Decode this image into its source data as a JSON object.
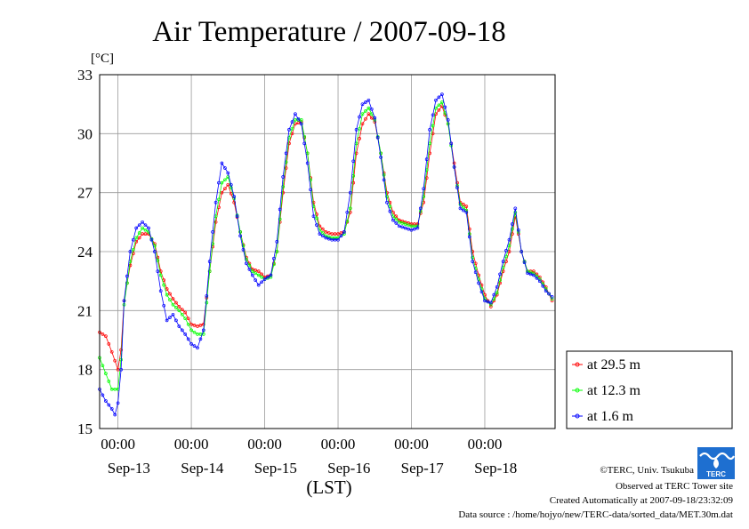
{
  "chart_data": {
    "type": "line",
    "title": "Air Temperature / 2007-09-18",
    "ylabel": "[°C]",
    "xlabel": "(LST)",
    "ylim": [
      15,
      33
    ],
    "yticks": [
      15,
      18,
      21,
      24,
      27,
      30,
      33
    ],
    "x_start": "2007-09-12T18:00",
    "x_end": "2007-09-18T23:00",
    "x_time_labels": [
      "00:00",
      "00:00",
      "00:00",
      "00:00",
      "00:00",
      "00:00"
    ],
    "x_day_labels": [
      "Sep-13",
      "Sep-14",
      "Sep-15",
      "Sep-16",
      "Sep-17",
      "Sep-18"
    ],
    "grid": true,
    "legend_position": "right",
    "series": [
      {
        "name": "at 29.5 m",
        "color": "#ff0000",
        "points": [
          [
            "2007-09-12T18:00",
            19.9
          ],
          [
            "2007-09-12T20:00",
            19.7
          ],
          [
            "2007-09-12T22:00",
            18.9
          ],
          [
            "2007-09-13T00:00",
            18.0
          ],
          [
            "2007-09-13T01:00",
            19.0
          ],
          [
            "2007-09-13T02:00",
            21.5
          ],
          [
            "2007-09-13T04:00",
            23.3
          ],
          [
            "2007-09-13T06:00",
            24.5
          ],
          [
            "2007-09-13T08:00",
            24.9
          ],
          [
            "2007-09-13T10:00",
            24.9
          ],
          [
            "2007-09-13T12:00",
            24.4
          ],
          [
            "2007-09-13T14:00",
            23.0
          ],
          [
            "2007-09-13T16:00",
            22.1
          ],
          [
            "2007-09-13T18:00",
            21.6
          ],
          [
            "2007-09-13T20:00",
            21.2
          ],
          [
            "2007-09-13T22:00",
            20.9
          ],
          [
            "2007-09-14T00:00",
            20.3
          ],
          [
            "2007-09-14T02:00",
            20.2
          ],
          [
            "2007-09-14T04:00",
            20.3
          ],
          [
            "2007-09-14T06:00",
            23.0
          ],
          [
            "2007-09-14T08:00",
            25.5
          ],
          [
            "2007-09-14T10:00",
            27.0
          ],
          [
            "2007-09-14T12:00",
            27.4
          ],
          [
            "2007-09-14T14:00",
            26.5
          ],
          [
            "2007-09-14T16:00",
            25.0
          ],
          [
            "2007-09-14T18:00",
            23.7
          ],
          [
            "2007-09-14T20:00",
            23.1
          ],
          [
            "2007-09-14T22:00",
            23.0
          ],
          [
            "2007-09-15T00:00",
            22.7
          ],
          [
            "2007-09-15T02:00",
            22.8
          ],
          [
            "2007-09-15T04:00",
            24.0
          ],
          [
            "2007-09-15T06:00",
            27.0
          ],
          [
            "2007-09-15T08:00",
            29.5
          ],
          [
            "2007-09-15T10:00",
            30.5
          ],
          [
            "2007-09-15T12:00",
            30.6
          ],
          [
            "2007-09-15T14:00",
            29.0
          ],
          [
            "2007-09-15T16:00",
            26.5
          ],
          [
            "2007-09-15T18:00",
            25.3
          ],
          [
            "2007-09-15T20:00",
            25.0
          ],
          [
            "2007-09-15T22:00",
            24.9
          ],
          [
            "2007-09-16T00:00",
            24.9
          ],
          [
            "2007-09-16T02:00",
            25.0
          ],
          [
            "2007-09-16T04:00",
            26.0
          ],
          [
            "2007-09-16T06:00",
            29.0
          ],
          [
            "2007-09-16T08:00",
            30.5
          ],
          [
            "2007-09-16T10:00",
            31.0
          ],
          [
            "2007-09-16T12:00",
            30.6
          ],
          [
            "2007-09-16T14:00",
            29.0
          ],
          [
            "2007-09-16T16:00",
            27.0
          ],
          [
            "2007-09-16T18:00",
            26.0
          ],
          [
            "2007-09-16T20:00",
            25.6
          ],
          [
            "2007-09-16T22:00",
            25.5
          ],
          [
            "2007-09-17T00:00",
            25.4
          ],
          [
            "2007-09-17T02:00",
            25.4
          ],
          [
            "2007-09-17T04:00",
            26.5
          ],
          [
            "2007-09-17T06:00",
            29.0
          ],
          [
            "2007-09-17T08:00",
            31.0
          ],
          [
            "2007-09-17T10:00",
            31.4
          ],
          [
            "2007-09-17T12:00",
            30.5
          ],
          [
            "2007-09-17T14:00",
            28.5
          ],
          [
            "2007-09-17T16:00",
            26.5
          ],
          [
            "2007-09-17T18:00",
            26.3
          ],
          [
            "2007-09-17T20:00",
            24.0
          ],
          [
            "2007-09-17T22:00",
            22.8
          ],
          [
            "2007-09-18T00:00",
            21.8
          ],
          [
            "2007-09-18T02:00",
            21.2
          ],
          [
            "2007-09-18T04:00",
            21.8
          ],
          [
            "2007-09-18T06:00",
            23.0
          ],
          [
            "2007-09-18T08:00",
            24.0
          ],
          [
            "2007-09-18T10:00",
            25.8
          ],
          [
            "2007-09-18T12:00",
            24.0
          ],
          [
            "2007-09-18T14:00",
            23.0
          ],
          [
            "2007-09-18T16:00",
            23.0
          ],
          [
            "2007-09-18T18:00",
            22.7
          ],
          [
            "2007-09-18T20:00",
            22.2
          ],
          [
            "2007-09-18T22:00",
            21.5
          ]
        ]
      },
      {
        "name": "at 12.3 m",
        "color": "#00ff00",
        "points": [
          [
            "2007-09-12T18:00",
            18.6
          ],
          [
            "2007-09-12T20:00",
            17.8
          ],
          [
            "2007-09-12T22:00",
            17.0
          ],
          [
            "2007-09-13T00:00",
            17.0
          ],
          [
            "2007-09-13T01:00",
            18.5
          ],
          [
            "2007-09-13T02:00",
            21.3
          ],
          [
            "2007-09-13T04:00",
            23.5
          ],
          [
            "2007-09-13T06:00",
            24.7
          ],
          [
            "2007-09-13T08:00",
            25.2
          ],
          [
            "2007-09-13T10:00",
            25.0
          ],
          [
            "2007-09-13T12:00",
            24.3
          ],
          [
            "2007-09-13T14:00",
            22.8
          ],
          [
            "2007-09-13T16:00",
            21.8
          ],
          [
            "2007-09-13T18:00",
            21.3
          ],
          [
            "2007-09-13T20:00",
            21.0
          ],
          [
            "2007-09-13T22:00",
            20.6
          ],
          [
            "2007-09-14T00:00",
            20.0
          ],
          [
            "2007-09-14T02:00",
            19.8
          ],
          [
            "2007-09-14T04:00",
            19.8
          ],
          [
            "2007-09-14T06:00",
            23.0
          ],
          [
            "2007-09-14T08:00",
            25.8
          ],
          [
            "2007-09-14T10:00",
            27.5
          ],
          [
            "2007-09-14T12:00",
            27.8
          ],
          [
            "2007-09-14T14:00",
            26.7
          ],
          [
            "2007-09-14T16:00",
            25.0
          ],
          [
            "2007-09-14T18:00",
            23.6
          ],
          [
            "2007-09-14T20:00",
            23.0
          ],
          [
            "2007-09-14T22:00",
            22.8
          ],
          [
            "2007-09-15T00:00",
            22.6
          ],
          [
            "2007-09-15T02:00",
            22.7
          ],
          [
            "2007-09-15T04:00",
            24.0
          ],
          [
            "2007-09-15T06:00",
            27.3
          ],
          [
            "2007-09-15T08:00",
            29.8
          ],
          [
            "2007-09-15T10:00",
            30.7
          ],
          [
            "2007-09-15T12:00",
            30.7
          ],
          [
            "2007-09-15T14:00",
            29.0
          ],
          [
            "2007-09-15T16:00",
            26.3
          ],
          [
            "2007-09-15T18:00",
            25.1
          ],
          [
            "2007-09-15T20:00",
            24.8
          ],
          [
            "2007-09-15T22:00",
            24.7
          ],
          [
            "2007-09-16T00:00",
            24.7
          ],
          [
            "2007-09-16T02:00",
            24.9
          ],
          [
            "2007-09-16T04:00",
            26.2
          ],
          [
            "2007-09-16T06:00",
            29.5
          ],
          [
            "2007-09-16T08:00",
            31.0
          ],
          [
            "2007-09-16T10:00",
            31.3
          ],
          [
            "2007-09-16T12:00",
            30.7
          ],
          [
            "2007-09-16T14:00",
            29.0
          ],
          [
            "2007-09-16T16:00",
            26.8
          ],
          [
            "2007-09-16T18:00",
            25.8
          ],
          [
            "2007-09-16T20:00",
            25.5
          ],
          [
            "2007-09-16T22:00",
            25.4
          ],
          [
            "2007-09-17T00:00",
            25.3
          ],
          [
            "2007-09-17T02:00",
            25.3
          ],
          [
            "2007-09-17T04:00",
            26.8
          ],
          [
            "2007-09-17T06:00",
            29.5
          ],
          [
            "2007-09-17T08:00",
            31.3
          ],
          [
            "2007-09-17T10:00",
            31.6
          ],
          [
            "2007-09-17T12:00",
            30.5
          ],
          [
            "2007-09-17T14:00",
            28.3
          ],
          [
            "2007-09-17T16:00",
            26.4
          ],
          [
            "2007-09-17T18:00",
            26.1
          ],
          [
            "2007-09-17T20:00",
            23.7
          ],
          [
            "2007-09-17T22:00",
            22.6
          ],
          [
            "2007-09-18T00:00",
            21.6
          ],
          [
            "2007-09-18T02:00",
            21.3
          ],
          [
            "2007-09-18T04:00",
            21.9
          ],
          [
            "2007-09-18T06:00",
            23.2
          ],
          [
            "2007-09-18T08:00",
            24.3
          ],
          [
            "2007-09-18T10:00",
            26.0
          ],
          [
            "2007-09-18T12:00",
            24.0
          ],
          [
            "2007-09-18T14:00",
            23.0
          ],
          [
            "2007-09-18T16:00",
            22.9
          ],
          [
            "2007-09-18T18:00",
            22.6
          ],
          [
            "2007-09-18T20:00",
            22.1
          ],
          [
            "2007-09-18T22:00",
            21.6
          ]
        ]
      },
      {
        "name": "at 1.6 m",
        "color": "#0000ff",
        "points": [
          [
            "2007-09-12T18:00",
            17.0
          ],
          [
            "2007-09-12T20:00",
            16.4
          ],
          [
            "2007-09-12T22:00",
            16.0
          ],
          [
            "2007-09-12T23:00",
            15.7
          ],
          [
            "2007-09-13T00:00",
            16.3
          ],
          [
            "2007-09-13T01:00",
            18.0
          ],
          [
            "2007-09-13T02:00",
            21.5
          ],
          [
            "2007-09-13T04:00",
            24.0
          ],
          [
            "2007-09-13T06:00",
            25.2
          ],
          [
            "2007-09-13T08:00",
            25.5
          ],
          [
            "2007-09-13T10:00",
            25.2
          ],
          [
            "2007-09-13T12:00",
            24.0
          ],
          [
            "2007-09-13T14:00",
            22.0
          ],
          [
            "2007-09-13T16:00",
            20.5
          ],
          [
            "2007-09-13T18:00",
            20.8
          ],
          [
            "2007-09-13T20:00",
            20.2
          ],
          [
            "2007-09-13T22:00",
            19.8
          ],
          [
            "2007-09-14T00:00",
            19.3
          ],
          [
            "2007-09-14T02:00",
            19.1
          ],
          [
            "2007-09-14T04:00",
            20.0
          ],
          [
            "2007-09-14T06:00",
            23.5
          ],
          [
            "2007-09-14T08:00",
            26.5
          ],
          [
            "2007-09-14T10:00",
            28.5
          ],
          [
            "2007-09-14T12:00",
            28.0
          ],
          [
            "2007-09-14T14:00",
            26.8
          ],
          [
            "2007-09-14T16:00",
            24.8
          ],
          [
            "2007-09-14T18:00",
            23.4
          ],
          [
            "2007-09-14T20:00",
            22.8
          ],
          [
            "2007-09-14T22:00",
            22.3
          ],
          [
            "2007-09-15T00:00",
            22.6
          ],
          [
            "2007-09-15T02:00",
            22.8
          ],
          [
            "2007-09-15T04:00",
            24.5
          ],
          [
            "2007-09-15T06:00",
            27.8
          ],
          [
            "2007-09-15T08:00",
            30.2
          ],
          [
            "2007-09-15T10:00",
            31.0
          ],
          [
            "2007-09-15T12:00",
            30.5
          ],
          [
            "2007-09-15T14:00",
            28.5
          ],
          [
            "2007-09-15T16:00",
            25.8
          ],
          [
            "2007-09-15T18:00",
            24.9
          ],
          [
            "2007-09-15T20:00",
            24.7
          ],
          [
            "2007-09-15T22:00",
            24.6
          ],
          [
            "2007-09-16T00:00",
            24.6
          ],
          [
            "2007-09-16T02:00",
            25.0
          ],
          [
            "2007-09-16T04:00",
            27.0
          ],
          [
            "2007-09-16T06:00",
            30.2
          ],
          [
            "2007-09-16T08:00",
            31.5
          ],
          [
            "2007-09-16T10:00",
            31.7
          ],
          [
            "2007-09-16T12:00",
            30.8
          ],
          [
            "2007-09-16T14:00",
            28.8
          ],
          [
            "2007-09-16T16:00",
            26.5
          ],
          [
            "2007-09-16T18:00",
            25.6
          ],
          [
            "2007-09-16T20:00",
            25.3
          ],
          [
            "2007-09-16T22:00",
            25.2
          ],
          [
            "2007-09-17T00:00",
            25.1
          ],
          [
            "2007-09-17T02:00",
            25.2
          ],
          [
            "2007-09-17T04:00",
            27.2
          ],
          [
            "2007-09-17T06:00",
            30.2
          ],
          [
            "2007-09-17T08:00",
            31.7
          ],
          [
            "2007-09-17T10:00",
            32.0
          ],
          [
            "2007-09-17T12:00",
            30.7
          ],
          [
            "2007-09-17T14:00",
            28.3
          ],
          [
            "2007-09-17T16:00",
            26.2
          ],
          [
            "2007-09-17T18:00",
            26.0
          ],
          [
            "2007-09-17T20:00",
            23.5
          ],
          [
            "2007-09-17T22:00",
            22.4
          ],
          [
            "2007-09-18T00:00",
            21.5
          ],
          [
            "2007-09-18T02:00",
            21.4
          ],
          [
            "2007-09-18T04:00",
            22.2
          ],
          [
            "2007-09-18T06:00",
            23.5
          ],
          [
            "2007-09-18T08:00",
            24.6
          ],
          [
            "2007-09-18T10:00",
            26.2
          ],
          [
            "2007-09-18T12:00",
            24.0
          ],
          [
            "2007-09-18T14:00",
            22.9
          ],
          [
            "2007-09-18T16:00",
            22.8
          ],
          [
            "2007-09-18T18:00",
            22.5
          ],
          [
            "2007-09-18T20:00",
            22.0
          ],
          [
            "2007-09-18T22:00",
            21.7
          ]
        ]
      }
    ]
  },
  "footer": {
    "copyright": "©TERC, Univ. Tsukuba",
    "site": "Observed at TERC Tower site",
    "created": "Created Automatically at 2007-09-18/23:32:09",
    "source": "Data source : /home/hojyo/new/TERC-data/sorted_data/MET.30m.dat"
  },
  "logo": {
    "label": "TERC",
    "color": "#1e6fd0"
  }
}
